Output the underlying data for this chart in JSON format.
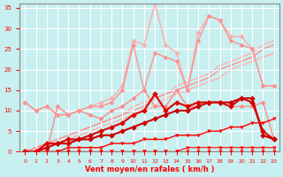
{
  "title": "",
  "xlabel": "Vent moyen/en rafales ( km/h )",
  "ylabel": "",
  "background_color": "#c8f0f0",
  "grid_color": "#ffffff",
  "x": [
    0,
    1,
    2,
    3,
    4,
    5,
    6,
    7,
    8,
    9,
    10,
    11,
    12,
    13,
    14,
    15,
    16,
    17,
    18,
    19,
    20,
    21,
    22,
    23
  ],
  "xlim": [
    -0.5,
    23.5
  ],
  "ylim": [
    0,
    36
  ],
  "yticks": [
    0,
    5,
    10,
    15,
    20,
    25,
    30,
    35
  ],
  "series": [
    {
      "y": [
        0,
        0,
        0,
        0,
        0,
        0,
        0,
        0,
        0,
        0,
        0,
        0,
        0,
        0,
        0,
        0,
        0,
        0,
        0,
        0,
        0,
        0,
        0,
        0
      ],
      "color": "#ff0000",
      "linewidth": 0.8,
      "marker": "v",
      "markersize": 2.5,
      "zorder": 5
    },
    {
      "y": [
        0,
        0,
        0,
        0,
        0,
        0,
        0,
        0,
        0,
        0,
        0,
        0,
        0,
        0,
        0,
        1,
        1,
        1,
        1,
        1,
        1,
        1,
        1,
        1
      ],
      "color": "#ff0000",
      "linewidth": 0.8,
      "marker": "v",
      "markersize": 2.5,
      "zorder": 5
    },
    {
      "y": [
        0,
        0,
        0,
        0,
        1,
        1,
        1,
        1,
        2,
        2,
        2,
        3,
        3,
        3,
        4,
        4,
        4,
        5,
        5,
        6,
        6,
        7,
        7,
        8
      ],
      "color": "#ff0000",
      "linewidth": 1.0,
      "marker": "v",
      "markersize": 2.5,
      "zorder": 5
    },
    {
      "y": [
        0,
        1,
        2,
        3,
        4,
        5,
        6,
        7,
        8,
        9,
        11,
        12,
        13,
        14,
        16,
        17,
        18,
        19,
        21,
        22,
        23,
        24,
        26,
        27
      ],
      "color": "#ffb0b0",
      "linewidth": 1.0,
      "marker": null,
      "markersize": 0,
      "zorder": 1
    },
    {
      "y": [
        0,
        1,
        1,
        2,
        3,
        4,
        5,
        6,
        7,
        8,
        9,
        10,
        11,
        13,
        14,
        15,
        16,
        17,
        18,
        20,
        21,
        22,
        23,
        24
      ],
      "color": "#ffb0b0",
      "linewidth": 1.0,
      "marker": null,
      "markersize": 0,
      "zorder": 1
    },
    {
      "y": [
        0,
        1,
        2,
        3,
        4,
        5,
        6,
        7,
        8,
        9,
        10,
        11,
        13,
        14,
        15,
        16,
        17,
        18,
        20,
        21,
        22,
        23,
        25,
        26
      ],
      "color": "#ff9090",
      "linewidth": 1.0,
      "marker": null,
      "markersize": 0,
      "zorder": 1
    },
    {
      "y": [
        0,
        0,
        0,
        11,
        9,
        10,
        9,
        8,
        10,
        11,
        13,
        15,
        11,
        11,
        15,
        11,
        11,
        12,
        12,
        11,
        11,
        11,
        12,
        3
      ],
      "color": "#ff8888",
      "linewidth": 1.0,
      "marker": "D",
      "markersize": 2.5,
      "zorder": 2
    },
    {
      "y": [
        12,
        10,
        11,
        9,
        9,
        10,
        11,
        12,
        13,
        16,
        27,
        26,
        36,
        26,
        24,
        15,
        29,
        33,
        32,
        28,
        28,
        25,
        16,
        16
      ],
      "color": "#ffaaaa",
      "linewidth": 1.0,
      "marker": "D",
      "markersize": 2.5,
      "zorder": 2
    },
    {
      "y": [
        12,
        10,
        11,
        9,
        9,
        10,
        11,
        11,
        12,
        15,
        26,
        15,
        24,
        23,
        22,
        15,
        27,
        33,
        32,
        27,
        26,
        25,
        16,
        16
      ],
      "color": "#ff9090",
      "linewidth": 1.0,
      "marker": "D",
      "markersize": 2.5,
      "zorder": 2
    },
    {
      "y": [
        0,
        0,
        2,
        2,
        3,
        3,
        4,
        5,
        6,
        7,
        9,
        10,
        14,
        10,
        12,
        11,
        12,
        12,
        12,
        11,
        13,
        12,
        5,
        3
      ],
      "color": "#dd0000",
      "linewidth": 1.5,
      "marker": "D",
      "markersize": 3.0,
      "zorder": 4
    },
    {
      "y": [
        0,
        0,
        1,
        2,
        2,
        3,
        3,
        4,
        4,
        5,
        6,
        7,
        8,
        9,
        10,
        10,
        11,
        12,
        12,
        12,
        13,
        13,
        4,
        3
      ],
      "color": "#cc0000",
      "linewidth": 1.5,
      "marker": "D",
      "markersize": 3.0,
      "zorder": 4
    }
  ],
  "tick_color": "#ff0000",
  "label_color": "#ff0000",
  "axis_color": "#888888"
}
